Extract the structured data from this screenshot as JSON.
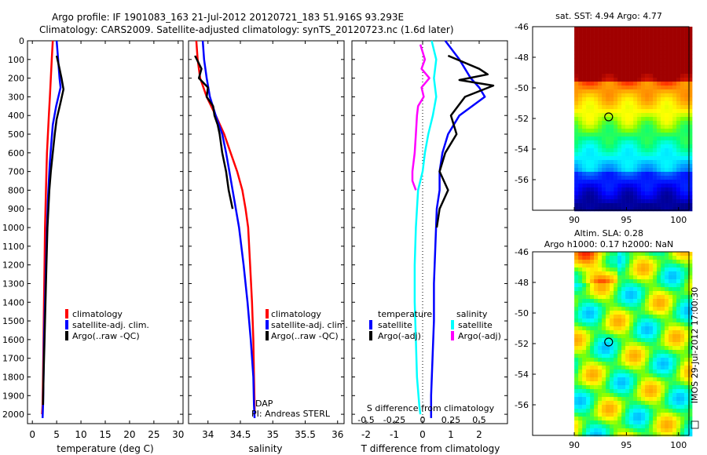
{
  "header": {
    "line1": "Argo profile: IF 1901083_163 21-Jul-2012 20120721_183 51.916S 93.293E",
    "line2": "Climatology: CARS2009. Satellite-adjusted climatology: synTS_20120723.nc (1.6d later)"
  },
  "colors": {
    "climatology": "#ff0000",
    "satellite": "#0000ff",
    "argo": "#000000",
    "sat_salinity": "#00ffff",
    "argo_salinity": "#ff00ff"
  },
  "chart_data": [
    {
      "type": "line",
      "panel": "temperature",
      "xlabel": "temperature (deg C)",
      "xlim": [
        -1,
        31
      ],
      "xticks": [
        "0",
        "5",
        "10",
        "15",
        "20",
        "25",
        "30"
      ],
      "ylim": [
        0,
        2050
      ],
      "yticks": [
        "0",
        "100",
        "200",
        "300",
        "400",
        "500",
        "600",
        "700",
        "800",
        "900",
        "1000",
        "1100",
        "1200",
        "1300",
        "1400",
        "1500",
        "1600",
        "1700",
        "1800",
        "1900",
        "2000"
      ],
      "legend": [
        "climatology",
        "satellite-adj. clim.",
        "Argo(..raw -QC)"
      ],
      "series": [
        {
          "name": "climatology",
          "color": "#ff0000",
          "x": [
            4.2,
            4.0,
            3.8,
            3.6,
            3.4,
            3.2,
            3.0,
            2.9,
            2.8,
            2.7,
            2.6,
            2.5,
            2.4,
            2.3,
            2.2,
            2.1,
            2.0
          ],
          "y": [
            0,
            100,
            200,
            300,
            400,
            500,
            600,
            700,
            800,
            900,
            1000,
            1200,
            1400,
            1600,
            1800,
            1950,
            2000
          ]
        },
        {
          "name": "satellite-adj. clim.",
          "color": "#0000ff",
          "x": [
            5.0,
            5.3,
            5.6,
            5.8,
            4.9,
            4.2,
            3.9,
            3.6,
            3.4,
            3.2,
            3.0,
            2.8,
            2.6,
            2.4,
            2.3,
            2.2,
            2.1
          ],
          "y": [
            0,
            100,
            200,
            250,
            350,
            450,
            550,
            650,
            750,
            850,
            1000,
            1200,
            1400,
            1600,
            1800,
            1950,
            2020
          ]
        },
        {
          "name": "Argo(..raw -QC)",
          "color": "#000000",
          "x": [
            5.0,
            5.6,
            6.0,
            6.4,
            5.8,
            5.0,
            4.6,
            4.2,
            3.8,
            3.5,
            3.3,
            3.1,
            2.9,
            2.7,
            2.5,
            2.3,
            2.2
          ],
          "y": [
            80,
            150,
            200,
            260,
            330,
            420,
            500,
            600,
            700,
            800,
            900,
            1000,
            1200,
            1400,
            1600,
            1800,
            1950
          ]
        }
      ]
    },
    {
      "type": "line",
      "panel": "salinity",
      "xlabel": "salinity",
      "xlim": [
        33.7,
        36.1
      ],
      "xticks": [
        "34",
        "34.5",
        "35",
        "35.5",
        "36"
      ],
      "ylim": [
        0,
        2050
      ],
      "legend": [
        "climatology",
        "satellite-adj. clim.",
        "Argo(..raw -QC)"
      ],
      "annotations": [
        "DAP",
        "PI: Andreas STERL"
      ],
      "series": [
        {
          "name": "climatology",
          "color": "#ff0000",
          "x": [
            33.82,
            33.84,
            33.88,
            33.98,
            34.12,
            34.25,
            34.35,
            34.45,
            34.53,
            34.58,
            34.62,
            34.65,
            34.68,
            34.7,
            34.71,
            34.72,
            34.72
          ],
          "y": [
            0,
            100,
            200,
            300,
            400,
            500,
            600,
            700,
            800,
            900,
            1000,
            1200,
            1400,
            1600,
            1800,
            1950,
            2000
          ]
        },
        {
          "name": "satellite-adj. clim.",
          "color": "#0000ff",
          "x": [
            33.92,
            33.94,
            33.98,
            34.03,
            34.12,
            34.22,
            34.28,
            34.33,
            34.38,
            34.43,
            34.48,
            34.55,
            34.61,
            34.66,
            34.7,
            34.71,
            34.72
          ],
          "y": [
            0,
            100,
            200,
            300,
            400,
            500,
            600,
            700,
            800,
            900,
            1000,
            1200,
            1400,
            1600,
            1800,
            1950,
            2020
          ]
        },
        {
          "name": "Argo(..raw -QC)",
          "color": "#000000",
          "x": [
            33.8,
            33.9,
            33.86,
            34.0,
            33.98,
            34.08,
            34.1,
            34.15,
            34.18,
            34.22,
            34.28,
            34.32,
            34.38
          ],
          "y": [
            80,
            150,
            200,
            250,
            300,
            350,
            400,
            450,
            500,
            600,
            700,
            800,
            900
          ]
        }
      ]
    },
    {
      "type": "line",
      "panel": "difference",
      "xlabel": "T difference from climatology",
      "xlabel_top": "S difference from climatology",
      "xlim": [
        -2.5,
        3
      ],
      "xticks": [
        "-2",
        "-1",
        "0",
        "1",
        "2"
      ],
      "xticks_top": [
        "-0.5",
        "-0.25",
        "0",
        "0.25",
        "0.5"
      ],
      "ylim": [
        0,
        2050
      ],
      "legend_headers": [
        "temperature",
        "salinity"
      ],
      "legend": [
        "satellite",
        "Argo(-adj)",
        "satellite",
        "Argo(-adj)"
      ],
      "series": [
        {
          "name": "temperature satellite",
          "color": "#0000ff",
          "x": [
            0.8,
            1.3,
            1.7,
            2.0,
            2.2,
            1.3,
            0.9,
            0.7,
            0.6,
            0.6,
            0.5,
            0.45,
            0.4,
            0.4,
            0.35,
            0.3,
            0.3
          ],
          "y": [
            0,
            100,
            200,
            250,
            300,
            400,
            500,
            600,
            700,
            800,
            900,
            1100,
            1300,
            1500,
            1700,
            1900,
            2020
          ]
        },
        {
          "name": "temperature Argo(-adj)",
          "color": "#000000",
          "x": [
            0.9,
            2.0,
            2.3,
            1.3,
            2.5,
            1.5,
            1.0,
            1.2,
            0.8,
            0.6,
            0.9,
            0.6,
            0.5
          ],
          "y": [
            80,
            150,
            180,
            210,
            240,
            300,
            400,
            500,
            600,
            700,
            800,
            900,
            1000
          ]
        },
        {
          "name": "salinity satellite",
          "color": "#00ffff",
          "x": [
            0.08,
            0.12,
            0.1,
            0.12,
            0.09,
            0.05,
            0.02,
            0.0,
            -0.04,
            -0.05,
            -0.06,
            -0.07,
            -0.07,
            -0.06,
            -0.05,
            -0.03,
            -0.02
          ],
          "y": [
            0,
            100,
            200,
            300,
            400,
            500,
            600,
            700,
            800,
            900,
            1000,
            1200,
            1400,
            1600,
            1800,
            1950,
            2000
          ]
        },
        {
          "name": "salinity Argo(-adj)",
          "color": "#ff00ff",
          "x": [
            -0.02,
            0.02,
            -0.01,
            0.06,
            -0.01,
            0.01,
            -0.04,
            -0.05,
            -0.06,
            -0.07,
            -0.09,
            -0.09,
            -0.06
          ],
          "y": [
            20,
            100,
            150,
            200,
            250,
            300,
            350,
            400,
            500,
            600,
            700,
            750,
            800
          ]
        }
      ]
    },
    {
      "type": "heatmap",
      "panel": "sst-map",
      "title": "sat. SST: 4.94 Argo: 4.77",
      "xlim": [
        86,
        101
      ],
      "ylim": [
        -58,
        -46
      ],
      "xticks": [
        "90",
        "95",
        "100"
      ],
      "yticks": [
        "-46",
        "-48",
        "-50",
        "-52",
        "-54",
        "-56"
      ],
      "marker": {
        "lon": 93.3,
        "lat": -51.9
      }
    },
    {
      "type": "heatmap",
      "panel": "sla-map",
      "title": "Altim. SLA: 0.28",
      "subtitle": "Argo h1000: 0.17 h2000: NaN",
      "xlim": [
        86,
        101
      ],
      "ylim": [
        -58,
        -46
      ],
      "xticks": [
        "90",
        "95",
        "100"
      ],
      "yticks": [
        "-46",
        "-48",
        "-50",
        "-52",
        "-54",
        "-56"
      ],
      "marker": {
        "lon": 93.3,
        "lat": -51.9
      }
    }
  ],
  "footer": {
    "stamp": "IMOS 29-Jul-2012 17:00:30"
  }
}
